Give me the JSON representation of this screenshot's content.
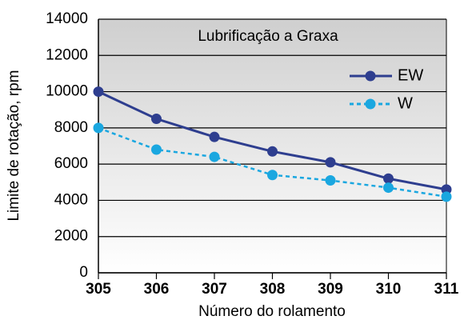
{
  "chart_data": {
    "type": "line",
    "annotation": "Lubrificação a Graxa",
    "xlabel": "Número do rolamento",
    "ylabel": "Limite de rotação, rpm",
    "x": [
      305,
      306,
      307,
      308,
      309,
      310,
      311
    ],
    "xlim": [
      305,
      311
    ],
    "xticks": [
      305,
      306,
      307,
      308,
      309,
      310,
      311
    ],
    "ylim": [
      0,
      14000
    ],
    "yticks": [
      0,
      2000,
      4000,
      6000,
      8000,
      10000,
      12000,
      14000
    ],
    "grid": true,
    "legend": "upper right",
    "series": [
      {
        "name": "EW",
        "color": "#2e3e8f",
        "line_style": "solid",
        "values": [
          10000,
          8500,
          7500,
          6700,
          6100,
          5200,
          4600
        ]
      },
      {
        "name": "W",
        "color": "#1aa7e0",
        "line_style": "dashed",
        "values": [
          8000,
          6800,
          6400,
          5400,
          5100,
          4700,
          4200
        ]
      }
    ]
  }
}
